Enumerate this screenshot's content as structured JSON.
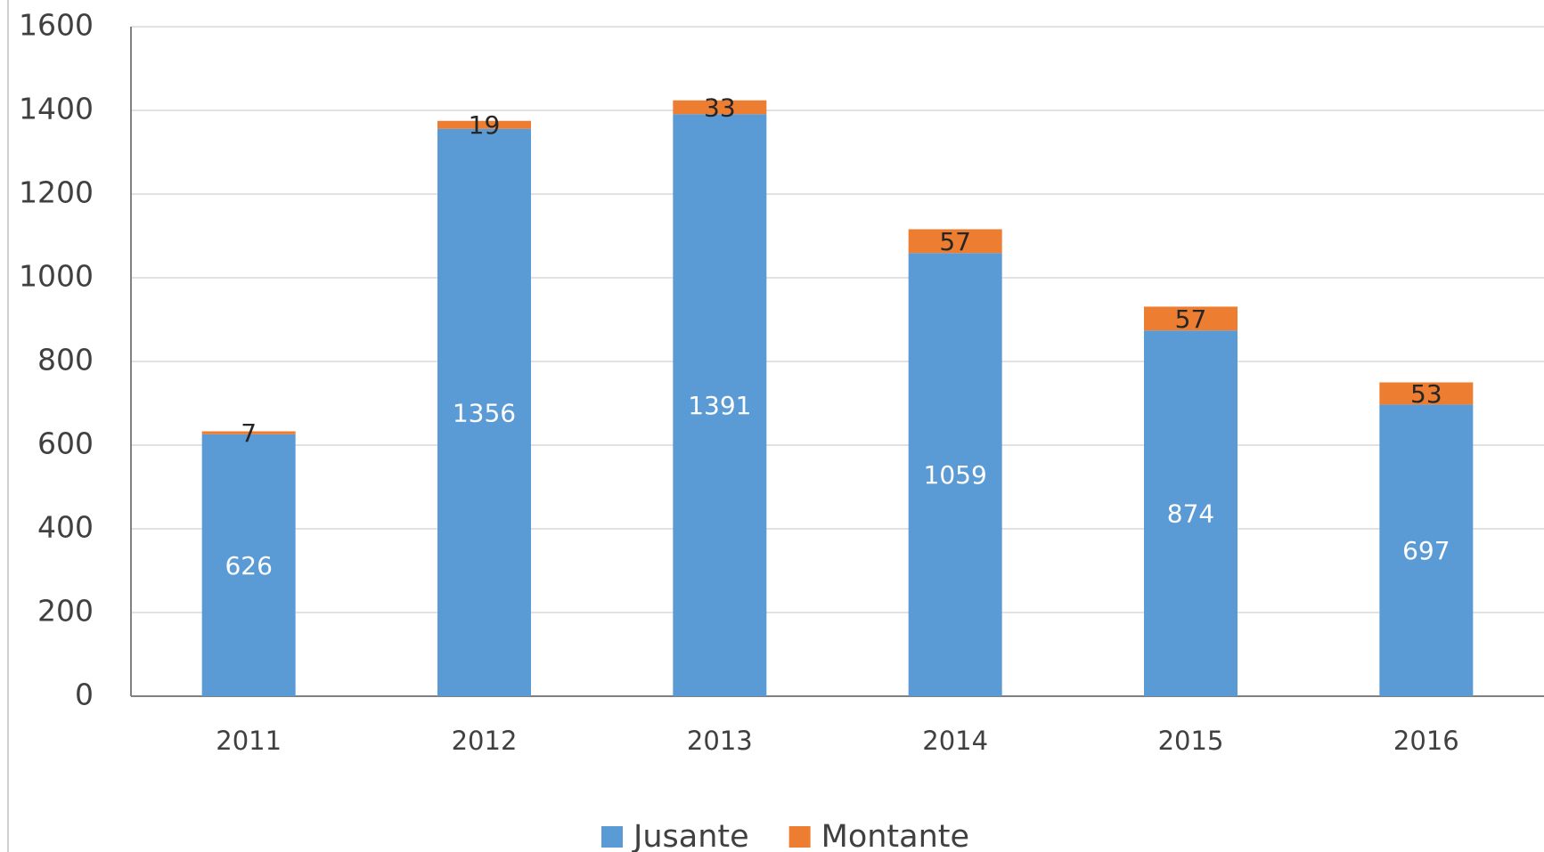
{
  "chart_data": {
    "type": "stacked_bar",
    "categories": [
      "2011",
      "2012",
      "2013",
      "2014",
      "2015",
      "2016"
    ],
    "series": [
      {
        "name": "Jusante",
        "color": "#5b9bd5",
        "values": [
          626,
          1356,
          1391,
          1059,
          874,
          697
        ]
      },
      {
        "name": "Montante",
        "color": "#ed7d31",
        "values": [
          7,
          19,
          33,
          57,
          57,
          53
        ]
      }
    ],
    "ylim": [
      0,
      1600
    ],
    "yticks": [
      0,
      200,
      400,
      600,
      800,
      1000,
      1200,
      1400,
      1600
    ],
    "grid": true,
    "legend": "bottom"
  }
}
